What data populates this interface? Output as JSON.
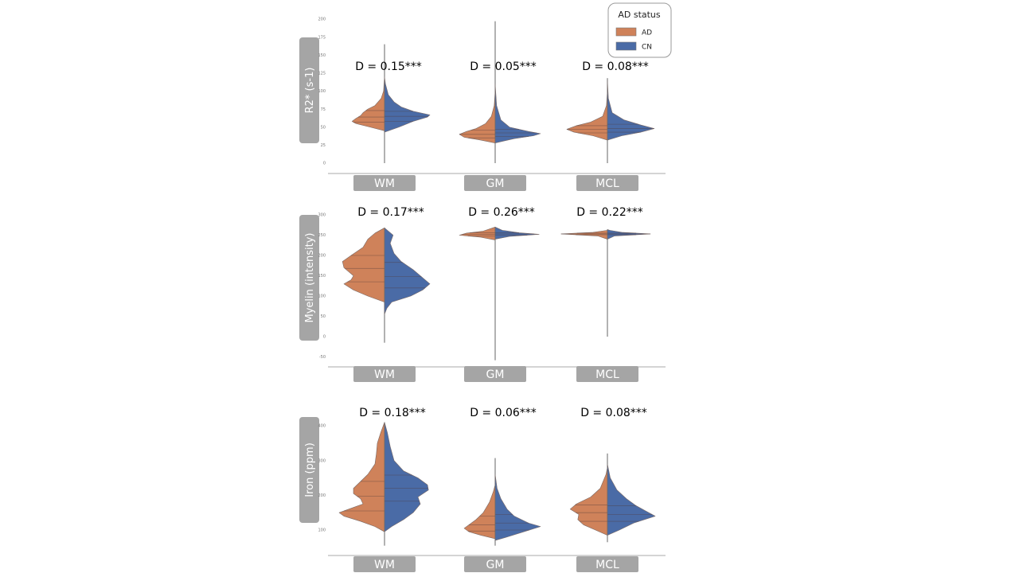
{
  "chart_data": [
    {
      "type": "violin",
      "ylabel": "R2* (s-1)",
      "ylabel_main": "R2* ",
      "ylabel_unit": "(s",
      "ylabel_sup": "-1",
      "ylabel_close": ")",
      "ylim": [
        0,
        200
      ],
      "yticks": [
        0,
        25,
        50,
        75,
        100,
        125,
        150,
        175,
        200
      ],
      "categories": [
        "WM",
        "GM",
        "MCL"
      ],
      "annotations": [
        "D = 0.15***",
        "D = 0.05***",
        "D = 0.08***"
      ],
      "violins": [
        {
          "range": [
            0,
            165
          ],
          "AD": [
            [
              45,
              0
            ],
            [
              50,
              0.3
            ],
            [
              55,
              0.6
            ],
            [
              58,
              0.68
            ],
            [
              62,
              0.6
            ],
            [
              66,
              0.5
            ],
            [
              70,
              0.45
            ],
            [
              75,
              0.35
            ],
            [
              80,
              0.2
            ],
            [
              90,
              0.07
            ],
            [
              100,
              0.02
            ],
            [
              120,
              0
            ]
          ],
          "CN": [
            [
              43,
              0
            ],
            [
              50,
              0.3
            ],
            [
              58,
              0.6
            ],
            [
              64,
              0.9
            ],
            [
              67,
              0.95
            ],
            [
              72,
              0.6
            ],
            [
              78,
              0.35
            ],
            [
              85,
              0.2
            ],
            [
              95,
              0.08
            ],
            [
              110,
              0.02
            ],
            [
              120,
              0
            ]
          ],
          "AD_q": [
            57,
            64,
            73
          ],
          "CN_q": [
            58,
            65,
            72
          ]
        },
        {
          "range": [
            0,
            197
          ],
          "AD": [
            [
              28,
              0
            ],
            [
              32,
              0.3
            ],
            [
              36,
              0.65
            ],
            [
              40,
              0.75
            ],
            [
              44,
              0.6
            ],
            [
              48,
              0.4
            ],
            [
              55,
              0.2
            ],
            [
              65,
              0.08
            ],
            [
              80,
              0.02
            ],
            [
              100,
              0
            ]
          ],
          "CN": [
            [
              28,
              0
            ],
            [
              34,
              0.4
            ],
            [
              38,
              0.8
            ],
            [
              41,
              0.95
            ],
            [
              44,
              0.7
            ],
            [
              50,
              0.3
            ],
            [
              60,
              0.12
            ],
            [
              80,
              0.03
            ],
            [
              110,
              0
            ]
          ],
          "AD_q": [
            35,
            40,
            46
          ],
          "CN_q": [
            37,
            42,
            47
          ]
        },
        {
          "range": [
            0,
            118
          ],
          "AD": [
            [
              32,
              0
            ],
            [
              38,
              0.3
            ],
            [
              43,
              0.7
            ],
            [
              47,
              0.85
            ],
            [
              52,
              0.65
            ],
            [
              57,
              0.35
            ],
            [
              65,
              0.1
            ],
            [
              80,
              0.02
            ],
            [
              100,
              0
            ]
          ],
          "CN": [
            [
              32,
              0
            ],
            [
              38,
              0.3
            ],
            [
              43,
              0.7
            ],
            [
              48,
              0.98
            ],
            [
              53,
              0.7
            ],
            [
              60,
              0.35
            ],
            [
              70,
              0.1
            ],
            [
              90,
              0.02
            ],
            [
              115,
              0
            ]
          ],
          "AD_q": [
            42,
            47,
            52
          ],
          "CN_q": [
            43,
            48,
            54
          ]
        }
      ]
    },
    {
      "type": "violin",
      "ylabel": "Myelin (intensity)",
      "ylim": [
        -50,
        300
      ],
      "yticks": [
        -50,
        0,
        50,
        100,
        150,
        200,
        250,
        300
      ],
      "categories": [
        "WM",
        "GM",
        "MCL"
      ],
      "annotations": [
        "D = 0.17***",
        "D = 0.26***",
        "D = 0.22***"
      ],
      "violins": [
        {
          "range": [
            -15,
            268
          ],
          "AD": [
            [
              85,
              0
            ],
            [
              100,
              0.35
            ],
            [
              115,
              0.65
            ],
            [
              130,
              0.85
            ],
            [
              140,
              0.7
            ],
            [
              150,
              0.65
            ],
            [
              170,
              0.85
            ],
            [
              185,
              0.88
            ],
            [
              200,
              0.7
            ],
            [
              220,
              0.45
            ],
            [
              240,
              0.35
            ],
            [
              255,
              0.2
            ],
            [
              268,
              0
            ]
          ],
          "CN": [
            [
              55,
              0
            ],
            [
              70,
              0.05
            ],
            [
              85,
              0.15
            ],
            [
              100,
              0.55
            ],
            [
              115,
              0.8
            ],
            [
              130,
              0.95
            ],
            [
              145,
              0.8
            ],
            [
              165,
              0.6
            ],
            [
              185,
              0.35
            ],
            [
              205,
              0.2
            ],
            [
              230,
              0.12
            ],
            [
              250,
              0.18
            ],
            [
              268,
              0
            ]
          ],
          "AD_q": [
            135,
            168,
            200
          ],
          "CN_q": [
            120,
            148,
            183
          ]
        },
        {
          "range": [
            -58,
            270
          ],
          "AD": [
            [
              238,
              0
            ],
            [
              245,
              0.3
            ],
            [
              250,
              0.75
            ],
            [
              255,
              0.6
            ],
            [
              260,
              0.25
            ],
            [
              270,
              0
            ]
          ],
          "CN": [
            [
              240,
              0
            ],
            [
              247,
              0.3
            ],
            [
              252,
              0.92
            ],
            [
              256,
              0.5
            ],
            [
              262,
              0.15
            ],
            [
              270,
              0
            ]
          ],
          "AD_q": [
            248,
            252,
            256
          ],
          "CN_q": [
            250,
            253,
            256
          ]
        },
        {
          "range": [
            0,
            264
          ],
          "AD": [
            [
              240,
              0
            ],
            [
              248,
              0.2
            ],
            [
              253,
              0.97
            ],
            [
              257,
              0.3
            ],
            [
              262,
              0
            ]
          ],
          "CN": [
            [
              240,
              0
            ],
            [
              248,
              0.15
            ],
            [
              253,
              0.9
            ],
            [
              257,
              0.3
            ],
            [
              262,
              0.05
            ],
            [
              264,
              0
            ]
          ],
          "AD_q": [
            251,
            253,
            255
          ],
          "CN_q": [
            251,
            253,
            255
          ]
        }
      ]
    },
    {
      "type": "violin",
      "ylabel": "Iron (ppm)",
      "ylim": [
        75,
        420
      ],
      "yticks": [
        100,
        200,
        300,
        400
      ],
      "categories": [
        "WM",
        "GM",
        "MCL"
      ],
      "annotations": [
        "D = 0.18***",
        "D = 0.06***",
        "D = 0.08***"
      ],
      "violins": [
        {
          "range": [
            55,
            410
          ],
          "AD": [
            [
              95,
              0
            ],
            [
              110,
              0.2
            ],
            [
              125,
              0.5
            ],
            [
              140,
              0.85
            ],
            [
              150,
              0.95
            ],
            [
              160,
              0.75
            ],
            [
              175,
              0.45
            ],
            [
              190,
              0.5
            ],
            [
              205,
              0.65
            ],
            [
              220,
              0.65
            ],
            [
              240,
              0.5
            ],
            [
              260,
              0.35
            ],
            [
              290,
              0.2
            ],
            [
              320,
              0.17
            ],
            [
              350,
              0.15
            ],
            [
              380,
              0.08
            ],
            [
              410,
              0
            ]
          ],
          "CN": [
            [
              95,
              0
            ],
            [
              110,
              0.15
            ],
            [
              130,
              0.4
            ],
            [
              150,
              0.6
            ],
            [
              175,
              0.75
            ],
            [
              195,
              0.7
            ],
            [
              215,
              0.92
            ],
            [
              230,
              0.9
            ],
            [
              250,
              0.7
            ],
            [
              270,
              0.4
            ],
            [
              300,
              0.2
            ],
            [
              340,
              0.12
            ],
            [
              380,
              0.06
            ],
            [
              410,
              0
            ]
          ],
          "AD_q": [
            155,
            197,
            240
          ],
          "CN_q": [
            183,
            220,
            258
          ]
        },
        {
          "range": [
            55,
            307
          ],
          "AD": [
            [
              75,
              0
            ],
            [
              85,
              0.3
            ],
            [
              95,
              0.55
            ],
            [
              105,
              0.65
            ],
            [
              115,
              0.55
            ],
            [
              130,
              0.4
            ],
            [
              150,
              0.25
            ],
            [
              180,
              0.12
            ],
            [
              210,
              0.04
            ],
            [
              230,
              0
            ]
          ],
          "CN": [
            [
              70,
              0
            ],
            [
              80,
              0.25
            ],
            [
              95,
              0.6
            ],
            [
              110,
              0.95
            ],
            [
              120,
              0.7
            ],
            [
              140,
              0.4
            ],
            [
              160,
              0.25
            ],
            [
              190,
              0.12
            ],
            [
              220,
              0.04
            ],
            [
              260,
              0
            ]
          ],
          "AD_q": [
            97,
            115,
            140
          ],
          "CN_q": [
            100,
            120,
            145
          ]
        },
        {
          "range": [
            65,
            320
          ],
          "AD": [
            [
              85,
              0
            ],
            [
              100,
              0.25
            ],
            [
              115,
              0.5
            ],
            [
              130,
              0.62
            ],
            [
              145,
              0.6
            ],
            [
              160,
              0.78
            ],
            [
              175,
              0.65
            ],
            [
              195,
              0.35
            ],
            [
              220,
              0.15
            ],
            [
              260,
              0.03
            ],
            [
              280,
              0
            ]
          ],
          "CN": [
            [
              85,
              0
            ],
            [
              100,
              0.25
            ],
            [
              120,
              0.55
            ],
            [
              140,
              1.0
            ],
            [
              155,
              0.8
            ],
            [
              170,
              0.6
            ],
            [
              190,
              0.4
            ],
            [
              215,
              0.2
            ],
            [
              250,
              0.06
            ],
            [
              290,
              0
            ]
          ],
          "AD_q": [
            125,
            150,
            172
          ],
          "CN_q": [
            125,
            145,
            170
          ]
        }
      ]
    }
  ],
  "legend": {
    "title": "AD status",
    "placement": "top-right",
    "entries": [
      {
        "label": "AD",
        "color": "#cf825a"
      },
      {
        "label": "CN",
        "color": "#4a6ba6"
      }
    ]
  }
}
